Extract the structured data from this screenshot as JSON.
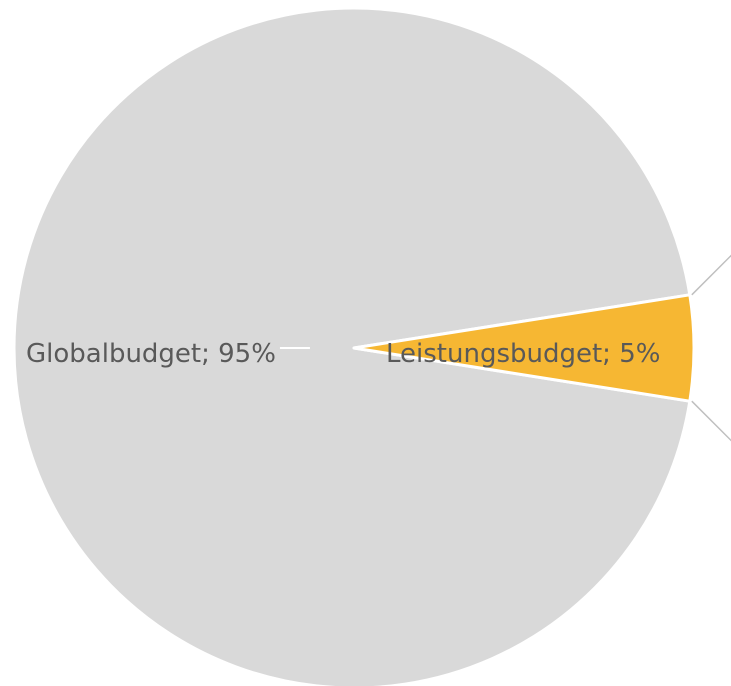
{
  "chart_data": {
    "type": "pie",
    "title": "",
    "slices": [
      {
        "name": "Globalbudget",
        "value": 95,
        "label": "Globalbudget; 95%",
        "color": "#d9d9d9"
      },
      {
        "name": "Leistungsbudget",
        "value": 5,
        "label": "Leistungsbudget; 5%",
        "color": "#f6b733"
      }
    ],
    "background_color": "#ffffff",
    "separator_color": "#ffffff",
    "leader_line_color": "#bfbfbf"
  }
}
